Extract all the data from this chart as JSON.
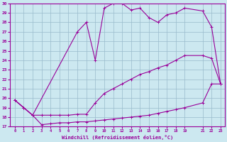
{
  "xlabel": "Windchill (Refroidissement éolien,°C)",
  "background_color": "#cce8f0",
  "grid_color": "#99bbcc",
  "line_color": "#990099",
  "ylim": [
    17,
    30
  ],
  "xlim": [
    -0.5,
    23.5
  ],
  "yticks": [
    17,
    18,
    19,
    20,
    21,
    22,
    23,
    24,
    25,
    26,
    27,
    28,
    29,
    30
  ],
  "xtick_positions": [
    0,
    1,
    2,
    3,
    4,
    5,
    6,
    7,
    8,
    9,
    10,
    11,
    12,
    13,
    14,
    15,
    16,
    17,
    18,
    19,
    21,
    22,
    23
  ],
  "xtick_labels": [
    "0",
    "1",
    "2",
    "3",
    "4",
    "5",
    "6",
    "7",
    "8",
    "9",
    "10",
    "11",
    "12",
    "13",
    "14",
    "15",
    "16",
    "17",
    "18",
    "19",
    "21",
    "22",
    "23"
  ],
  "line1_x": [
    0,
    1,
    2,
    3,
    4,
    5,
    6,
    7,
    8,
    9,
    10,
    11,
    12,
    13,
    14,
    15,
    16,
    17,
    18,
    19,
    21,
    22,
    23
  ],
  "line1_y": [
    19.8,
    19.0,
    18.2,
    17.2,
    17.3,
    17.4,
    17.4,
    17.5,
    17.5,
    17.6,
    17.7,
    17.8,
    17.9,
    18.0,
    18.1,
    18.2,
    18.4,
    18.6,
    18.8,
    19.0,
    19.5,
    21.5,
    21.5
  ],
  "line2_x": [
    0,
    1,
    2,
    3,
    4,
    5,
    6,
    7,
    8,
    9,
    10,
    11,
    12,
    13,
    14,
    15,
    16,
    17,
    18,
    19,
    21,
    22,
    23
  ],
  "line2_y": [
    19.8,
    19.0,
    18.2,
    18.2,
    18.2,
    18.2,
    18.2,
    18.3,
    18.3,
    19.5,
    20.5,
    21.0,
    21.5,
    22.0,
    22.5,
    22.8,
    23.2,
    23.5,
    24.0,
    24.5,
    24.5,
    24.2,
    21.5
  ],
  "line3_x": [
    0,
    1,
    2,
    7,
    8,
    9,
    10,
    11,
    12,
    13,
    14,
    15,
    16,
    17,
    18,
    19,
    21,
    22,
    23
  ],
  "line3_y": [
    19.8,
    19.0,
    18.2,
    27.0,
    28.0,
    24.0,
    29.5,
    30.0,
    30.0,
    29.3,
    29.5,
    28.5,
    28.0,
    28.8,
    29.0,
    29.5,
    29.2,
    27.5,
    21.5
  ]
}
